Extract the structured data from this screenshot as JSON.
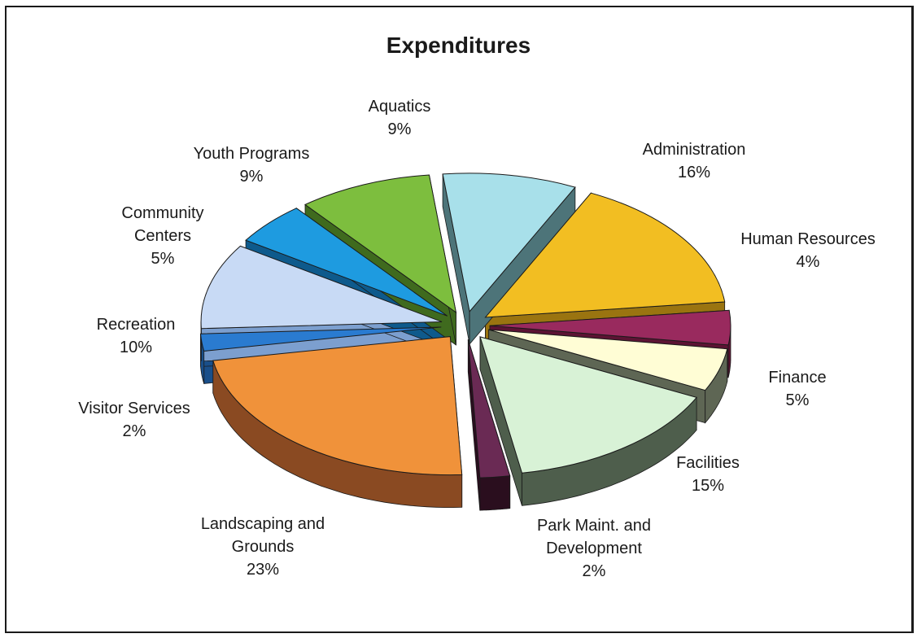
{
  "chart_data": {
    "type": "pie",
    "title": "Expenditures",
    "slices": [
      {
        "label": "Administration",
        "value": 16,
        "value_label": "16%",
        "color": "#F2BE22",
        "side": "#9A7410"
      },
      {
        "label": "Human Resources",
        "value": 4,
        "value_label": "4%",
        "color": "#992A5E",
        "side": "#5C1333"
      },
      {
        "label": "Finance",
        "value": 5,
        "value_label": "5%",
        "color": "#FFFDD5",
        "side": "#5E6654"
      },
      {
        "label": "Facilities",
        "value": 15,
        "value_label": "15%",
        "color": "#D8F2D6",
        "side": "#4E5E4C"
      },
      {
        "label": "Park Maint. and Development",
        "value": 2,
        "value_label": "2%",
        "color": "#6A2A54",
        "side": "#2A0E1E"
      },
      {
        "label": "Landscaping and Grounds",
        "value": 23,
        "value_label": "23%",
        "color": "#F0923A",
        "side": "#8A4A22"
      },
      {
        "label": "Visitor Services",
        "value": 2,
        "value_label": "2%",
        "color": "#2A7BD0",
        "side": "#1A4F8A"
      },
      {
        "label": "Recreation",
        "value": 10,
        "value_label": "10%",
        "color": "#C8DAF5",
        "side": "#7C9FCF"
      },
      {
        "label": "Community Centers",
        "value": 5,
        "value_label": "5%",
        "color": "#1E9BE0",
        "side": "#0E5A8C"
      },
      {
        "label": "Youth Programs",
        "value": 9,
        "value_label": "9%",
        "color": "#7DBE3E",
        "side": "#3F6A1E"
      },
      {
        "label": "Aquatics",
        "value": 9,
        "value_label": "9%",
        "color": "#A8E0EA",
        "side": "#4D7479"
      }
    ]
  }
}
